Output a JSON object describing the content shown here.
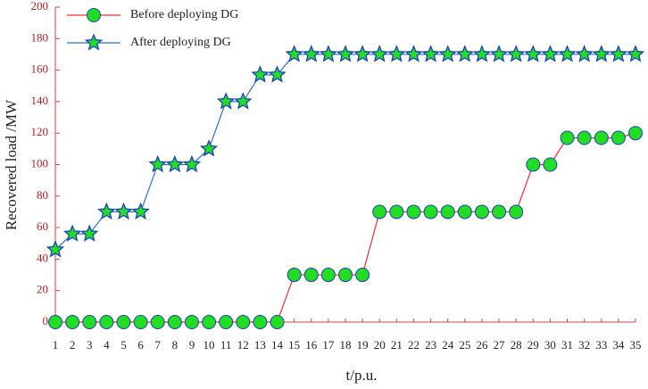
{
  "chart_data": {
    "type": "line",
    "x_label": "t/p.u.",
    "y_label": "Recovered load /MW",
    "x": [
      1,
      2,
      3,
      4,
      5,
      6,
      7,
      8,
      9,
      10,
      11,
      12,
      13,
      14,
      15,
      16,
      17,
      18,
      19,
      20,
      21,
      22,
      23,
      24,
      25,
      26,
      27,
      28,
      29,
      30,
      31,
      32,
      33,
      34,
      35
    ],
    "xlim": [
      1,
      35
    ],
    "xticks": [
      1,
      2,
      3,
      4,
      5,
      6,
      7,
      8,
      9,
      10,
      11,
      12,
      13,
      14,
      15,
      16,
      17,
      18,
      19,
      20,
      21,
      22,
      23,
      24,
      25,
      26,
      27,
      28,
      29,
      30,
      31,
      32,
      33,
      34,
      35
    ],
    "ylim": [
      0,
      200
    ],
    "yticks": [
      0,
      20,
      40,
      60,
      80,
      100,
      120,
      140,
      160,
      180,
      200
    ],
    "series": [
      {
        "name": "Before deploying DG",
        "color": "#e8312a",
        "marker": "circle",
        "marker_color": "#22dd22",
        "values": [
          0,
          0,
          0,
          0,
          0,
          0,
          0,
          0,
          0,
          0,
          0,
          0,
          0,
          0,
          30,
          30,
          30,
          30,
          30,
          70,
          70,
          70,
          70,
          70,
          70,
          70,
          70,
          70,
          100,
          100,
          117,
          117,
          117,
          117,
          120
        ]
      },
      {
        "name": "After deploying DG",
        "color": "#2f6fd0",
        "marker": "star",
        "marker_color": "#22dd22",
        "values": [
          46,
          56,
          56,
          70,
          70,
          70,
          100,
          100,
          100,
          110,
          140,
          140,
          157,
          157,
          170,
          170,
          170,
          170,
          170,
          170,
          170,
          170,
          170,
          170,
          170,
          170,
          170,
          170,
          170,
          170,
          170,
          170,
          170,
          170,
          170
        ]
      }
    ]
  }
}
